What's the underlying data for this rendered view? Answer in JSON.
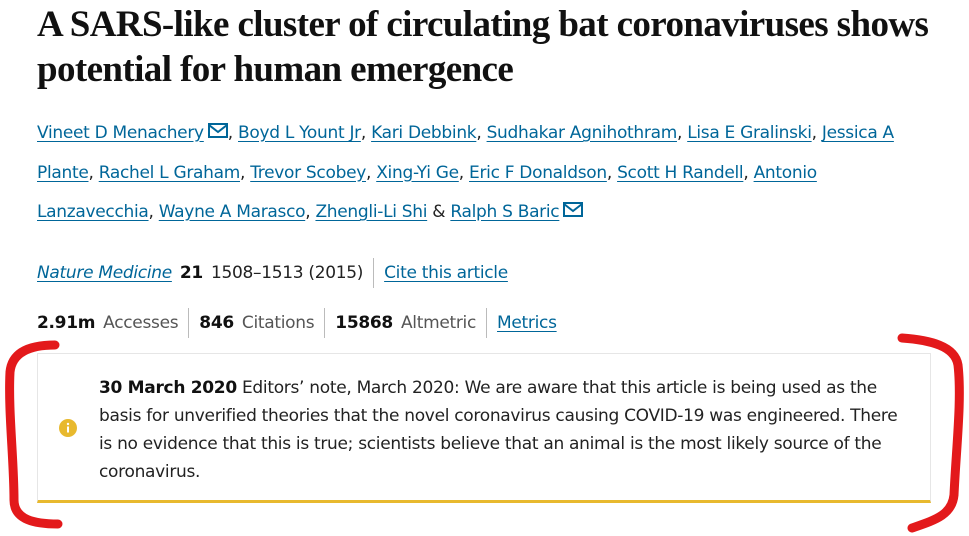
{
  "article": {
    "title": "A SARS-like cluster of circulating bat coronaviruses shows potential for human emergence",
    "authors": [
      {
        "name": "Vineet D Menachery",
        "corresponding": true
      },
      {
        "name": "Boyd L Yount Jr"
      },
      {
        "name": "Kari Debbink"
      },
      {
        "name": "Sudhakar Agnihothram"
      },
      {
        "name": "Lisa E Gralinski"
      },
      {
        "name": "Jessica A Plante"
      },
      {
        "name": "Rachel L Graham"
      },
      {
        "name": "Trevor Scobey"
      },
      {
        "name": "Xing-Yi Ge"
      },
      {
        "name": "Eric F Donaldson"
      },
      {
        "name": "Scott H Randell"
      },
      {
        "name": "Antonio Lanzavecchia"
      },
      {
        "name": "Wayne A Marasco"
      },
      {
        "name": "Zhengli-Li Shi"
      },
      {
        "name": "Ralph S Baric",
        "corresponding": true
      }
    ],
    "author_separator": ",",
    "last_author_separator": "&",
    "journal": "Nature Medicine",
    "volume": "21",
    "pages_year": "1508–1513 (2015)",
    "cite_link": "Cite this article",
    "metrics": [
      {
        "value": "2.91m",
        "label": "Accesses"
      },
      {
        "value": "846",
        "label": "Citations"
      },
      {
        "value": "15868",
        "label": "Altmetric"
      }
    ],
    "metrics_link": "Metrics",
    "note": {
      "date": "30 March 2020",
      "text": "Editors’ note, March 2020: We are aware that this article is being used as the basis for unverified theories that the novel coronavirus causing COVID-19 was engineered. There is no evidence that this is true; scientists believe that an animal is the most likely source of the coronavirus."
    }
  }
}
